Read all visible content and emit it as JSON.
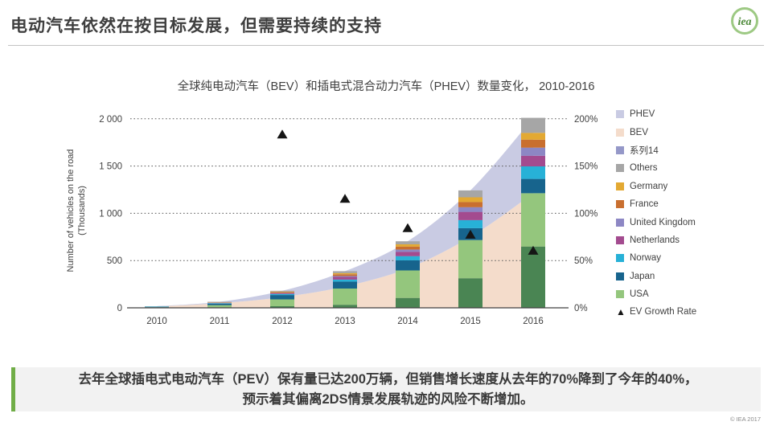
{
  "header": {
    "title": "电动汽车依然在按目标发展，但需要持续的支持",
    "logo_text": "iea"
  },
  "chart": {
    "title": "全球纯电动汽车（BEV）和插电式混合动力汽车（PHEV）数量变化， 2010-2016",
    "y_axis_title_line1": "Number of vehicles on the road",
    "y_axis_title_line2": "(Thousands)"
  },
  "chart_data": {
    "type": "combo: stacked area (BEV/PHEV totals) + stacked bars (by country) + triangle scatter (growth rate)",
    "categories": [
      "2010",
      "2011",
      "2012",
      "2013",
      "2014",
      "2015",
      "2016"
    ],
    "y_left": {
      "ticks": [
        "0",
        "500",
        "1 000",
        "1 500",
        "2 000"
      ],
      "tick_values": [
        0,
        500,
        1000,
        1500,
        2000
      ],
      "max": 2000,
      "unit": "thousand vehicles"
    },
    "y_right": {
      "ticks": [
        "0%",
        "50%",
        "100%",
        "150%",
        "200%"
      ],
      "tick_values": [
        0,
        50,
        100,
        150,
        200
      ],
      "max": 200
    },
    "grid": "dotted horizontal lines at 500/1000/1500/2000 (= 50%/100%/150%/200%)",
    "legend_position": "right",
    "area_series": [
      {
        "key": "bev-area",
        "name": "BEV",
        "color": "#f4dccb",
        "values": [
          14,
          49,
          113,
          226,
          417,
          750,
          1210
        ]
      },
      {
        "key": "phev-area",
        "name": "PHEV",
        "color": "#c9cbe3",
        "values": [
          3,
          15,
          67,
          162,
          287,
          492,
          800
        ]
      }
    ],
    "bar_series": [
      {
        "key": "series14",
        "name": "系列14",
        "color": "#4a8553",
        "values": [
          2,
          7,
          17,
          32,
          105,
          313,
          649
        ]
      },
      {
        "key": "usa",
        "name": "USA",
        "color": "#94c67d",
        "values": [
          4,
          21,
          72,
          172,
          290,
          404,
          564
        ]
      },
      {
        "key": "japan",
        "name": "Japan",
        "color": "#17648d",
        "values": [
          3,
          16,
          46,
          74,
          108,
          126,
          151
        ]
      },
      {
        "key": "norway",
        "name": "Norway",
        "color": "#27b1d7",
        "values": [
          4,
          5,
          10,
          20,
          44,
          84,
          133
        ]
      },
      {
        "key": "netherlands",
        "name": "Netherlands",
        "color": "#a34b8f",
        "values": [
          0,
          1,
          7,
          29,
          45,
          88,
          112
        ]
      },
      {
        "key": "united-kingdom",
        "name": "United Kingdom",
        "color": "#8d87c4",
        "values": [
          1,
          3,
          6,
          10,
          24,
          50,
          86
        ]
      },
      {
        "key": "france",
        "name": "France",
        "color": "#c96f2f",
        "values": [
          1,
          3,
          9,
          18,
          31,
          54,
          84
        ]
      },
      {
        "key": "germany",
        "name": "Germany",
        "color": "#e3a933",
        "values": [
          0,
          2,
          5,
          12,
          25,
          50,
          72
        ]
      },
      {
        "key": "others",
        "name": "Others",
        "color": "#a6a6a6",
        "values": [
          2,
          6,
          8,
          21,
          32,
          73,
          159
        ]
      }
    ],
    "scatter_series": {
      "key": "ev-growth-rate",
      "name": "EV Growth Rate",
      "marker": "triangle",
      "color": "#151515",
      "values_percent": [
        null,
        null,
        183,
        115,
        84,
        77,
        60
      ]
    },
    "legend": [
      {
        "key": "phev",
        "label": "PHEV",
        "color": "#c9cbe3",
        "marker": "square"
      },
      {
        "key": "bev",
        "label": "BEV",
        "color": "#f4dccb",
        "marker": "square"
      },
      {
        "key": "series14",
        "label": "系列14",
        "color": "#9598c8",
        "marker": "square"
      },
      {
        "key": "others",
        "label": "Others",
        "color": "#a6a6a6",
        "marker": "square"
      },
      {
        "key": "germany",
        "label": "Germany",
        "color": "#e3a933",
        "marker": "square"
      },
      {
        "key": "france",
        "label": "France",
        "color": "#c96f2f",
        "marker": "square"
      },
      {
        "key": "united-kingdom",
        "label": "United Kingdom",
        "color": "#8d87c4",
        "marker": "square"
      },
      {
        "key": "netherlands",
        "label": "Netherlands",
        "color": "#a34b8f",
        "marker": "square"
      },
      {
        "key": "norway",
        "label": "Norway",
        "color": "#27b1d7",
        "marker": "square"
      },
      {
        "key": "japan",
        "label": "Japan",
        "color": "#17648d",
        "marker": "square"
      },
      {
        "key": "usa",
        "label": "USA",
        "color": "#94c67d",
        "marker": "square"
      },
      {
        "key": "ev-growth-rate",
        "label": "EV Growth Rate",
        "color": "#151515",
        "marker": "triangle"
      }
    ]
  },
  "info_box": {
    "line1": "去年全球插电式电动汽车（PEV）保有量已达200万辆，但销售增长速度从去年的70%降到了今年的40%，",
    "line2": "预示着其偏离2DS情景发展轨迹的风险不断增加。",
    "accent_color": "#70ad47"
  },
  "footer": {
    "copyright": "© IEA 2017"
  }
}
